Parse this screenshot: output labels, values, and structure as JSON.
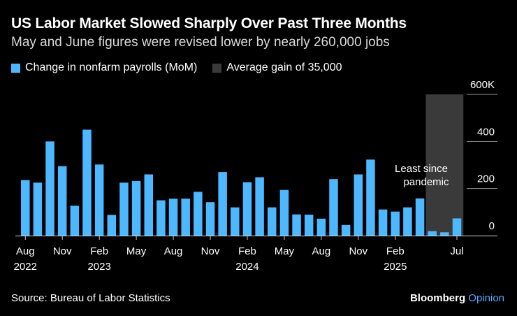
{
  "header": {
    "title": "US Labor Market Slowed Sharply Over Past Three Months",
    "subtitle": "May and June figures were revised lower by nearly 260,000 jobs"
  },
  "legend": {
    "payrolls_label": "Change in nonfarm payrolls (MoM)",
    "average_label": "Average gain of 35,000"
  },
  "annotation": {
    "line1": "Least since",
    "line2": "pandemic"
  },
  "footer": {
    "source": "Source: Bureau of Labor Statistics",
    "brand_main": "Bloomberg",
    "brand_sub": "Opinion"
  },
  "colors": {
    "bar": "#4db8ff",
    "shade": "#3a3a3a",
    "background": "#000000",
    "text": "#ffffff"
  },
  "chart_data": {
    "type": "bar",
    "categories": [
      "2022-08",
      "2022-09",
      "2022-10",
      "2022-11",
      "2022-12",
      "2023-01",
      "2023-02",
      "2023-03",
      "2023-04",
      "2023-05",
      "2023-06",
      "2023-07",
      "2023-08",
      "2023-09",
      "2023-10",
      "2023-11",
      "2023-12",
      "2024-01",
      "2024-02",
      "2024-03",
      "2024-04",
      "2024-05",
      "2024-06",
      "2024-07",
      "2024-08",
      "2024-09",
      "2024-10",
      "2024-11",
      "2024-12",
      "2025-01",
      "2025-02",
      "2025-03",
      "2025-04",
      "2025-05",
      "2025-06",
      "2025-07"
    ],
    "values": [
      236,
      225,
      400,
      295,
      127,
      450,
      302,
      88,
      225,
      232,
      260,
      150,
      157,
      157,
      186,
      142,
      270,
      120,
      227,
      248,
      120,
      194,
      90,
      89,
      72,
      240,
      45,
      260,
      323,
      111,
      102,
      120,
      158,
      19,
      14,
      73
    ],
    "ylim": [
      0,
      600
    ],
    "yticks": [
      {
        "value": 0,
        "label": "0"
      },
      {
        "value": 200,
        "label": "200"
      },
      {
        "value": 400,
        "label": "400"
      },
      {
        "value": 600,
        "label": "600K"
      }
    ],
    "xticks": [
      {
        "index": 0,
        "month": "Aug",
        "year": "2022"
      },
      {
        "index": 3,
        "month": "Nov",
        "year": ""
      },
      {
        "index": 6,
        "month": "Feb",
        "year": "2023"
      },
      {
        "index": 9,
        "month": "May",
        "year": ""
      },
      {
        "index": 12,
        "month": "Aug",
        "year": ""
      },
      {
        "index": 15,
        "month": "Nov",
        "year": ""
      },
      {
        "index": 18,
        "month": "Feb",
        "year": "2024"
      },
      {
        "index": 21,
        "month": "May",
        "year": ""
      },
      {
        "index": 24,
        "month": "Aug",
        "year": ""
      },
      {
        "index": 27,
        "month": "Nov",
        "year": ""
      },
      {
        "index": 30,
        "month": "Feb",
        "year": "2025"
      },
      {
        "index": 35,
        "month": "Jul",
        "year": ""
      }
    ],
    "shaded_range": {
      "start_index": 33,
      "end_index": 35
    },
    "gridlines": true
  }
}
